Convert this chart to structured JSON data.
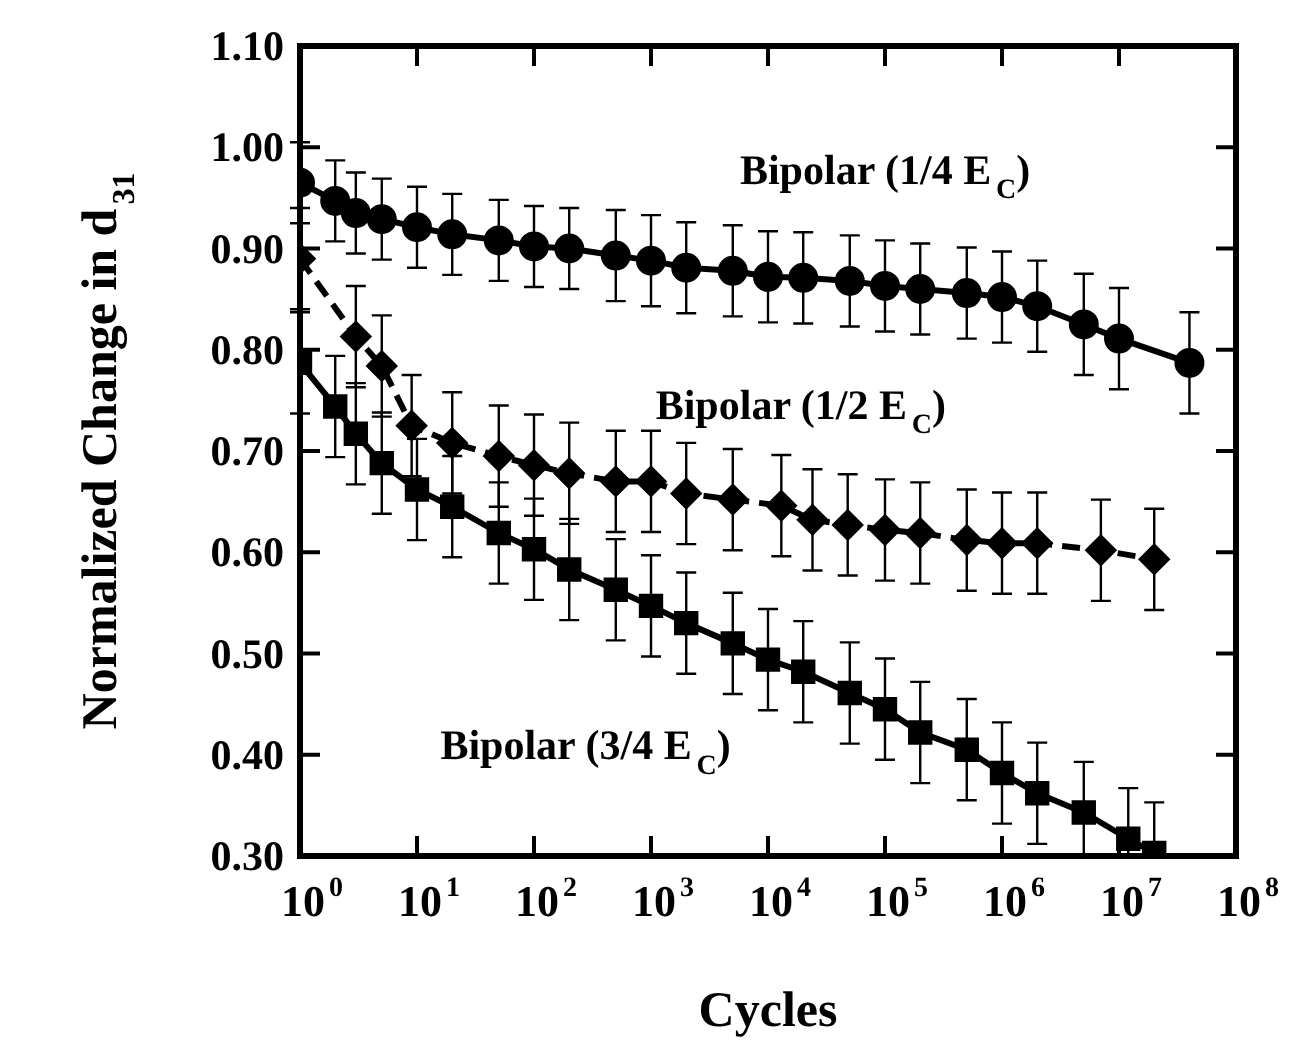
{
  "chart_data": {
    "type": "line",
    "xlabel": "Cycles",
    "ylabel": "Normalized Change in d$_{31}$",
    "log": "x",
    "grid": false,
    "legend": false,
    "xlim": [
      1,
      100000000
    ],
    "xticks": [
      {
        "value": 1,
        "label": "10$^{0}$"
      },
      {
        "value": 10,
        "label": "10$^{1}$"
      },
      {
        "value": 100,
        "label": "10$^{2}$"
      },
      {
        "value": 1000,
        "label": "10$^{3}$"
      },
      {
        "value": 10000,
        "label": "10$^{4}$"
      },
      {
        "value": 100000,
        "label": "10$^{5}$"
      },
      {
        "value": 1000000,
        "label": "10$^{6}$"
      },
      {
        "value": 10000000,
        "label": "10$^{7}$"
      },
      {
        "value": 100000000,
        "label": "10$^{8}$"
      }
    ],
    "ylim": [
      0.3,
      1.1
    ],
    "yticks": [
      {
        "value": 0.3,
        "label": "0.30"
      },
      {
        "value": 0.4,
        "label": "0.40"
      },
      {
        "value": 0.5,
        "label": "0.50"
      },
      {
        "value": 0.6,
        "label": "0.60"
      },
      {
        "value": 0.7,
        "label": "0.70"
      },
      {
        "value": 0.8,
        "label": "0.80"
      },
      {
        "value": 0.9,
        "label": "0.90"
      },
      {
        "value": 1.0,
        "label": "1.00"
      },
      {
        "value": 1.1,
        "label": "1.10"
      }
    ],
    "series": [
      {
        "name": "Bipolar (1/4 E$_{C}$)",
        "color": "#000000",
        "marker": "circle",
        "line_style": "solid",
        "x": [
          1,
          2,
          3,
          5,
          10,
          20,
          50,
          100,
          200,
          500,
          1000,
          2000,
          5000,
          10000,
          20000,
          50000,
          100000,
          200000,
          500000,
          1000000,
          2000000,
          5000000,
          10000000,
          40000000
        ],
        "values": [
          0.965,
          0.947,
          0.935,
          0.929,
          0.921,
          0.914,
          0.908,
          0.902,
          0.9,
          0.893,
          0.888,
          0.881,
          0.878,
          0.872,
          0.871,
          0.868,
          0.863,
          0.86,
          0.856,
          0.852,
          0.843,
          0.825,
          0.811,
          0.787
        ],
        "errors": [
          0.04,
          0.04,
          0.04,
          0.04,
          0.04,
          0.04,
          0.04,
          0.04,
          0.04,
          0.045,
          0.045,
          0.045,
          0.045,
          0.045,
          0.045,
          0.045,
          0.045,
          0.045,
          0.045,
          0.045,
          0.045,
          0.05,
          0.05,
          0.05
        ]
      },
      {
        "name": "Bipolar (1/2 E$_{C}$)",
        "color": "#000000",
        "marker": "diamond",
        "line_style": "dashed",
        "x": [
          1,
          3,
          5,
          9,
          20,
          50,
          100,
          200,
          500,
          1000,
          2000,
          5000,
          13000,
          24000,
          48000,
          100000,
          200000,
          500000,
          1000000,
          2000000,
          7000000,
          20000000
        ],
        "values": [
          0.89,
          0.813,
          0.784,
          0.725,
          0.708,
          0.695,
          0.686,
          0.678,
          0.67,
          0.67,
          0.658,
          0.652,
          0.646,
          0.632,
          0.627,
          0.622,
          0.619,
          0.612,
          0.609,
          0.609,
          0.602,
          0.593
        ],
        "errors": [
          0.05,
          0.05,
          0.05,
          0.05,
          0.05,
          0.05,
          0.05,
          0.05,
          0.05,
          0.05,
          0.05,
          0.05,
          0.05,
          0.05,
          0.05,
          0.05,
          0.05,
          0.05,
          0.05,
          0.05,
          0.05,
          0.05
        ]
      },
      {
        "name": "Bipolar (3/4 E$_{C}$)",
        "color": "#000000",
        "marker": "square",
        "line_style": "solid",
        "x": [
          1,
          2,
          3,
          5,
          10,
          20,
          50,
          100,
          200,
          500,
          1000,
          2000,
          5000,
          10000,
          20000,
          50000,
          100000,
          200000,
          500000,
          1000000,
          2000000,
          5000000,
          12000000,
          20000000
        ],
        "values": [
          0.787,
          0.744,
          0.717,
          0.688,
          0.662,
          0.645,
          0.619,
          0.603,
          0.583,
          0.563,
          0.547,
          0.53,
          0.51,
          0.494,
          0.482,
          0.461,
          0.445,
          0.422,
          0.405,
          0.382,
          0.362,
          0.343,
          0.317,
          0.303
        ],
        "errors": [
          0.05,
          0.05,
          0.05,
          0.05,
          0.05,
          0.05,
          0.05,
          0.05,
          0.05,
          0.05,
          0.05,
          0.05,
          0.05,
          0.05,
          0.05,
          0.05,
          0.05,
          0.05,
          0.05,
          0.05,
          0.05,
          [
            0.3,
            0.393
          ],
          [
            0.3,
            0.367
          ],
          [
            0.3,
            0.353
          ]
        ]
      }
    ]
  }
}
